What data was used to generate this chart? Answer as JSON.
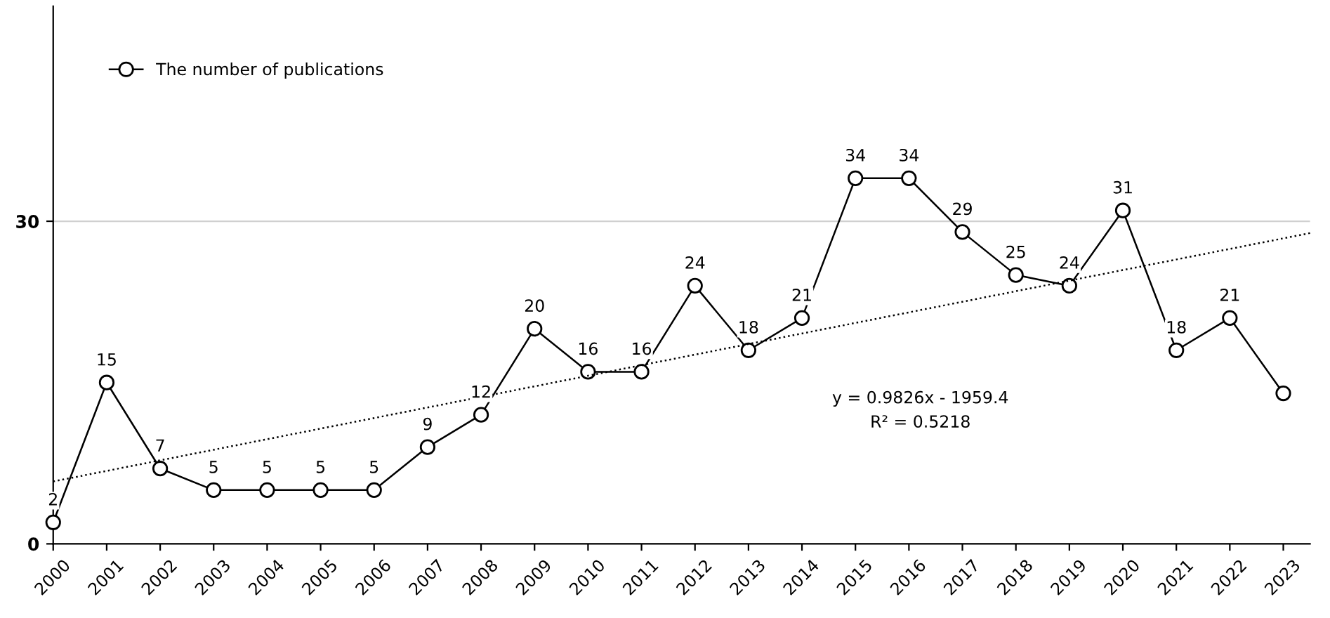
{
  "chart_data": {
    "type": "line",
    "x": [
      2000,
      2001,
      2002,
      2003,
      2004,
      2005,
      2006,
      2007,
      2008,
      2009,
      2010,
      2011,
      2012,
      2013,
      2014,
      2015,
      2016,
      2017,
      2018,
      2019,
      2020,
      2021,
      2022,
      2023
    ],
    "series": [
      {
        "name": "The number of publications",
        "color": "#000000",
        "marker": "circle",
        "line_style": "solid",
        "values": [
          2,
          15,
          7,
          5,
          5,
          5,
          5,
          9,
          12,
          20,
          16,
          16,
          24,
          18,
          21,
          34,
          34,
          29,
          25,
          24,
          31,
          18,
          21,
          14
        ],
        "value_labels": [
          "2",
          "15",
          "7",
          "5",
          "5",
          "5",
          "5",
          "9",
          "12",
          "20",
          "16",
          "16",
          "24",
          "18",
          "21",
          "34",
          "34",
          "29",
          "25",
          "24",
          "31",
          "18",
          "21",
          null
        ]
      },
      {
        "type": "line",
        "color": "#000000",
        "marker": "none",
        "line_style": "dotted",
        "x": [
          2000,
          2023.5
        ],
        "values": [
          5.8,
          28.9
        ]
      }
    ],
    "xlim": [
      2000,
      2023.5
    ],
    "xticks": [
      2000,
      2001,
      2002,
      2003,
      2004,
      2005,
      2006,
      2007,
      2008,
      2009,
      2010,
      2011,
      2012,
      2013,
      2014,
      2015,
      2016,
      2017,
      2018,
      2019,
      2020,
      2021,
      2022,
      2023
    ],
    "ylim": [
      0,
      50
    ],
    "yticks": [
      0,
      30
    ],
    "grid": "y",
    "legend": "top left",
    "annotations": [
      "y = 0.9826x - 1959.4",
      "R² = 0.5218"
    ]
  }
}
